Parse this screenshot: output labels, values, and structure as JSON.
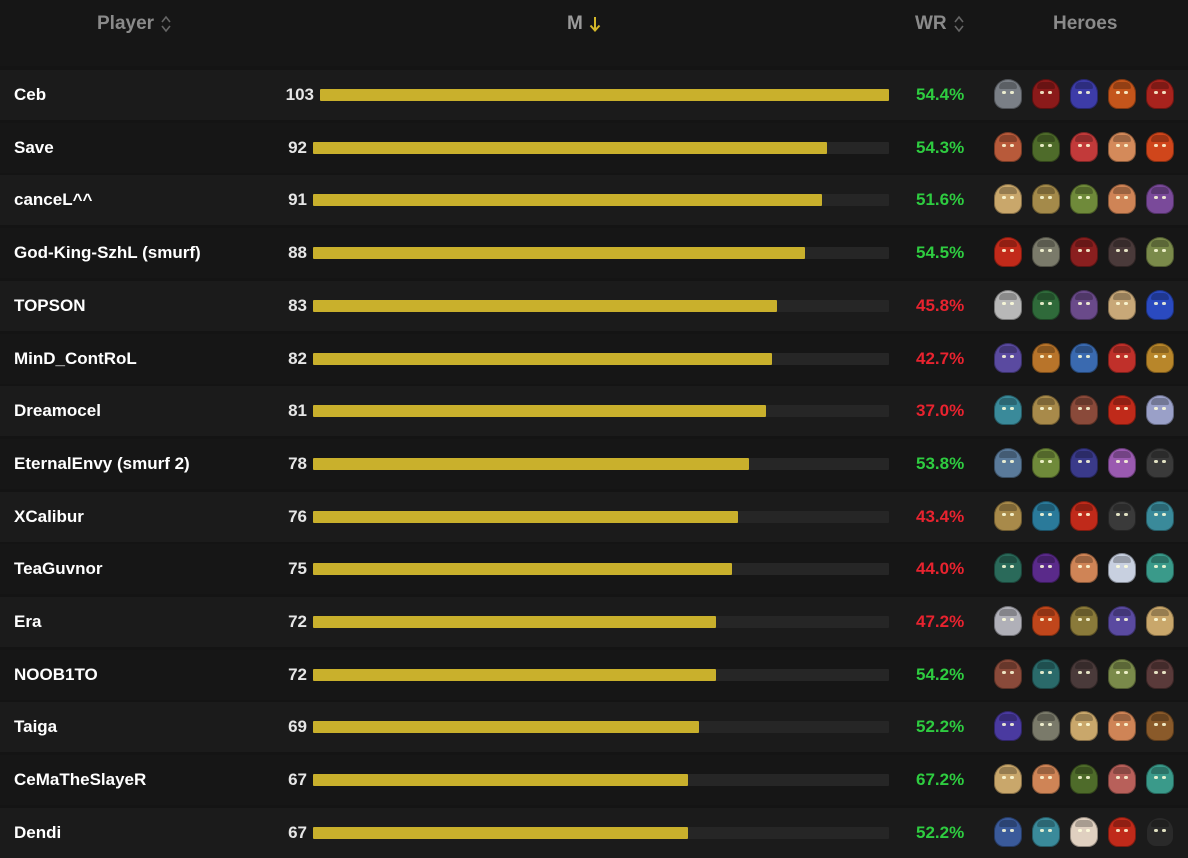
{
  "header": {
    "player": "Player",
    "matches": "M",
    "winrate": "WR",
    "heroes": "Heroes"
  },
  "colors": {
    "bar": "#c9b02c",
    "win_good": "#2ecc40",
    "win_bad": "#e8232f"
  },
  "max_matches": 103,
  "rows": [
    {
      "name": "Ceb",
      "matches": "103",
      "wr": "54.4%",
      "good": true,
      "heroes": [
        {
          "icon": "hero-icon",
          "c": "#7a7f86"
        },
        {
          "icon": "hero-icon",
          "c": "#8b1a1a"
        },
        {
          "icon": "hero-icon",
          "c": "#3d3ca8"
        },
        {
          "icon": "hero-icon",
          "c": "#c4551b"
        },
        {
          "icon": "hero-icon",
          "c": "#a8231d"
        }
      ]
    },
    {
      "name": "Save",
      "matches": "92",
      "wr": "54.3%",
      "good": true,
      "heroes": [
        {
          "icon": "hero-icon",
          "c": "#b85a3a"
        },
        {
          "icon": "hero-icon",
          "c": "#4e6b2a"
        },
        {
          "icon": "hero-icon",
          "c": "#c23a3a"
        },
        {
          "icon": "hero-icon",
          "c": "#d48a5a"
        },
        {
          "icon": "hero-icon",
          "c": "#d0461b"
        }
      ]
    },
    {
      "name": "canceL^^",
      "matches": "91",
      "wr": "51.6%",
      "good": true,
      "heroes": [
        {
          "icon": "hero-icon",
          "c": "#c9a76b"
        },
        {
          "icon": "hero-icon",
          "c": "#a48a4a"
        },
        {
          "icon": "hero-icon",
          "c": "#6f8a3a"
        },
        {
          "icon": "hero-icon",
          "c": "#cf8456"
        },
        {
          "icon": "hero-icon",
          "c": "#7a4a9a"
        }
      ]
    },
    {
      "name": "God-King-SzhL (smurf)",
      "matches": "88",
      "wr": "54.5%",
      "good": true,
      "heroes": [
        {
          "icon": "hero-icon",
          "c": "#c22a1a"
        },
        {
          "icon": "hero-icon",
          "c": "#7a7a6a"
        },
        {
          "icon": "hero-icon",
          "c": "#8a1f1f"
        },
        {
          "icon": "hero-icon",
          "c": "#4a3a3a"
        },
        {
          "icon": "hero-icon",
          "c": "#7a8a4a"
        }
      ]
    },
    {
      "name": "TOPSON",
      "matches": "83",
      "wr": "45.8%",
      "good": false,
      "heroes": [
        {
          "icon": "hero-icon",
          "c": "#b8b8b8"
        },
        {
          "icon": "hero-icon",
          "c": "#2f6a3a"
        },
        {
          "icon": "hero-icon",
          "c": "#6a4a8a"
        },
        {
          "icon": "hero-icon",
          "c": "#c8a878"
        },
        {
          "icon": "hero-icon",
          "c": "#2a4ac0"
        }
      ]
    },
    {
      "name": "MinD_ContRoL",
      "matches": "82",
      "wr": "42.7%",
      "good": false,
      "heroes": [
        {
          "icon": "hero-icon",
          "c": "#5a4aa0"
        },
        {
          "icon": "hero-icon",
          "c": "#b8742a"
        },
        {
          "icon": "hero-icon",
          "c": "#3a6ab0"
        },
        {
          "icon": "hero-icon",
          "c": "#c0302a"
        },
        {
          "icon": "hero-icon",
          "c": "#b8862a"
        }
      ]
    },
    {
      "name": "Dreamocel",
      "matches": "81",
      "wr": "37.0%",
      "good": false,
      "heroes": [
        {
          "icon": "hero-icon",
          "c": "#3a8a9a"
        },
        {
          "icon": "hero-icon",
          "c": "#a88a4a"
        },
        {
          "icon": "hero-icon",
          "c": "#8a4a3a"
        },
        {
          "icon": "hero-icon",
          "c": "#c02a1a"
        },
        {
          "icon": "hero-icon",
          "c": "#9aa0c8"
        }
      ]
    },
    {
      "name": "EternalEnvy (smurf 2)",
      "matches": "78",
      "wr": "53.8%",
      "good": true,
      "heroes": [
        {
          "icon": "hero-icon",
          "c": "#5a7a9a"
        },
        {
          "icon": "hero-icon",
          "c": "#6f8a3a"
        },
        {
          "icon": "hero-icon",
          "c": "#3a3a8a"
        },
        {
          "icon": "hero-icon",
          "c": "#9a5ab0"
        },
        {
          "icon": "hero-icon",
          "c": "#3a3a3a"
        }
      ]
    },
    {
      "name": "XCalibur",
      "matches": "76",
      "wr": "43.4%",
      "good": false,
      "heroes": [
        {
          "icon": "hero-icon",
          "c": "#a88a4a"
        },
        {
          "icon": "hero-icon",
          "c": "#2a7a9a"
        },
        {
          "icon": "hero-icon",
          "c": "#c02a1a"
        },
        {
          "icon": "hero-icon",
          "c": "#3a3a3a"
        },
        {
          "icon": "hero-icon",
          "c": "#3a8a9a"
        }
      ]
    },
    {
      "name": "TeaGuvnor",
      "matches": "75",
      "wr": "44.0%",
      "good": false,
      "heroes": [
        {
          "icon": "hero-icon",
          "c": "#2a6a5a"
        },
        {
          "icon": "hero-icon",
          "c": "#5a2a8a"
        },
        {
          "icon": "hero-icon",
          "c": "#cf8456"
        },
        {
          "icon": "hero-icon",
          "c": "#c8d0e0"
        },
        {
          "icon": "hero-icon",
          "c": "#3a9a8a"
        }
      ]
    },
    {
      "name": "Era",
      "matches": "72",
      "wr": "47.2%",
      "good": false,
      "heroes": [
        {
          "icon": "hero-icon",
          "c": "#b0b0b8"
        },
        {
          "icon": "hero-icon",
          "c": "#c0461b"
        },
        {
          "icon": "hero-icon",
          "c": "#8a7a3a"
        },
        {
          "icon": "hero-icon",
          "c": "#5a4aa0"
        },
        {
          "icon": "hero-icon",
          "c": "#c9a76b"
        }
      ]
    },
    {
      "name": "NOOB1TO",
      "matches": "72",
      "wr": "54.2%",
      "good": true,
      "heroes": [
        {
          "icon": "hero-icon",
          "c": "#8a4a3a"
        },
        {
          "icon": "hero-icon",
          "c": "#2a6a6a"
        },
        {
          "icon": "hero-icon",
          "c": "#4a3a3a"
        },
        {
          "icon": "hero-icon",
          "c": "#7a8a4a"
        },
        {
          "icon": "hero-icon",
          "c": "#5a3a3a"
        }
      ]
    },
    {
      "name": "Taiga",
      "matches": "69",
      "wr": "52.2%",
      "good": true,
      "heroes": [
        {
          "icon": "hero-icon",
          "c": "#4a3aa0"
        },
        {
          "icon": "hero-icon",
          "c": "#7a7a6a"
        },
        {
          "icon": "hero-icon",
          "c": "#c9a76b"
        },
        {
          "icon": "hero-icon",
          "c": "#cf8456"
        },
        {
          "icon": "hero-icon",
          "c": "#8a5a2a"
        }
      ]
    },
    {
      "name": "CeMaTheSlayeR",
      "matches": "67",
      "wr": "67.2%",
      "good": true,
      "heroes": [
        {
          "icon": "hero-icon",
          "c": "#c9a76b"
        },
        {
          "icon": "hero-icon",
          "c": "#cf8456"
        },
        {
          "icon": "hero-icon",
          "c": "#4e6b2a"
        },
        {
          "icon": "hero-icon",
          "c": "#b8605a"
        },
        {
          "icon": "hero-icon",
          "c": "#3a9a8a"
        }
      ]
    },
    {
      "name": "Dendi",
      "matches": "67",
      "wr": "52.2%",
      "good": true,
      "heroes": [
        {
          "icon": "hero-icon",
          "c": "#3a5a9a"
        },
        {
          "icon": "hero-icon",
          "c": "#3a8a9a"
        },
        {
          "icon": "hero-icon",
          "c": "#e0d0c0"
        },
        {
          "icon": "hero-icon",
          "c": "#c02a1a"
        },
        {
          "icon": "hero-icon",
          "c": "#2a2a2a"
        }
      ]
    }
  ]
}
